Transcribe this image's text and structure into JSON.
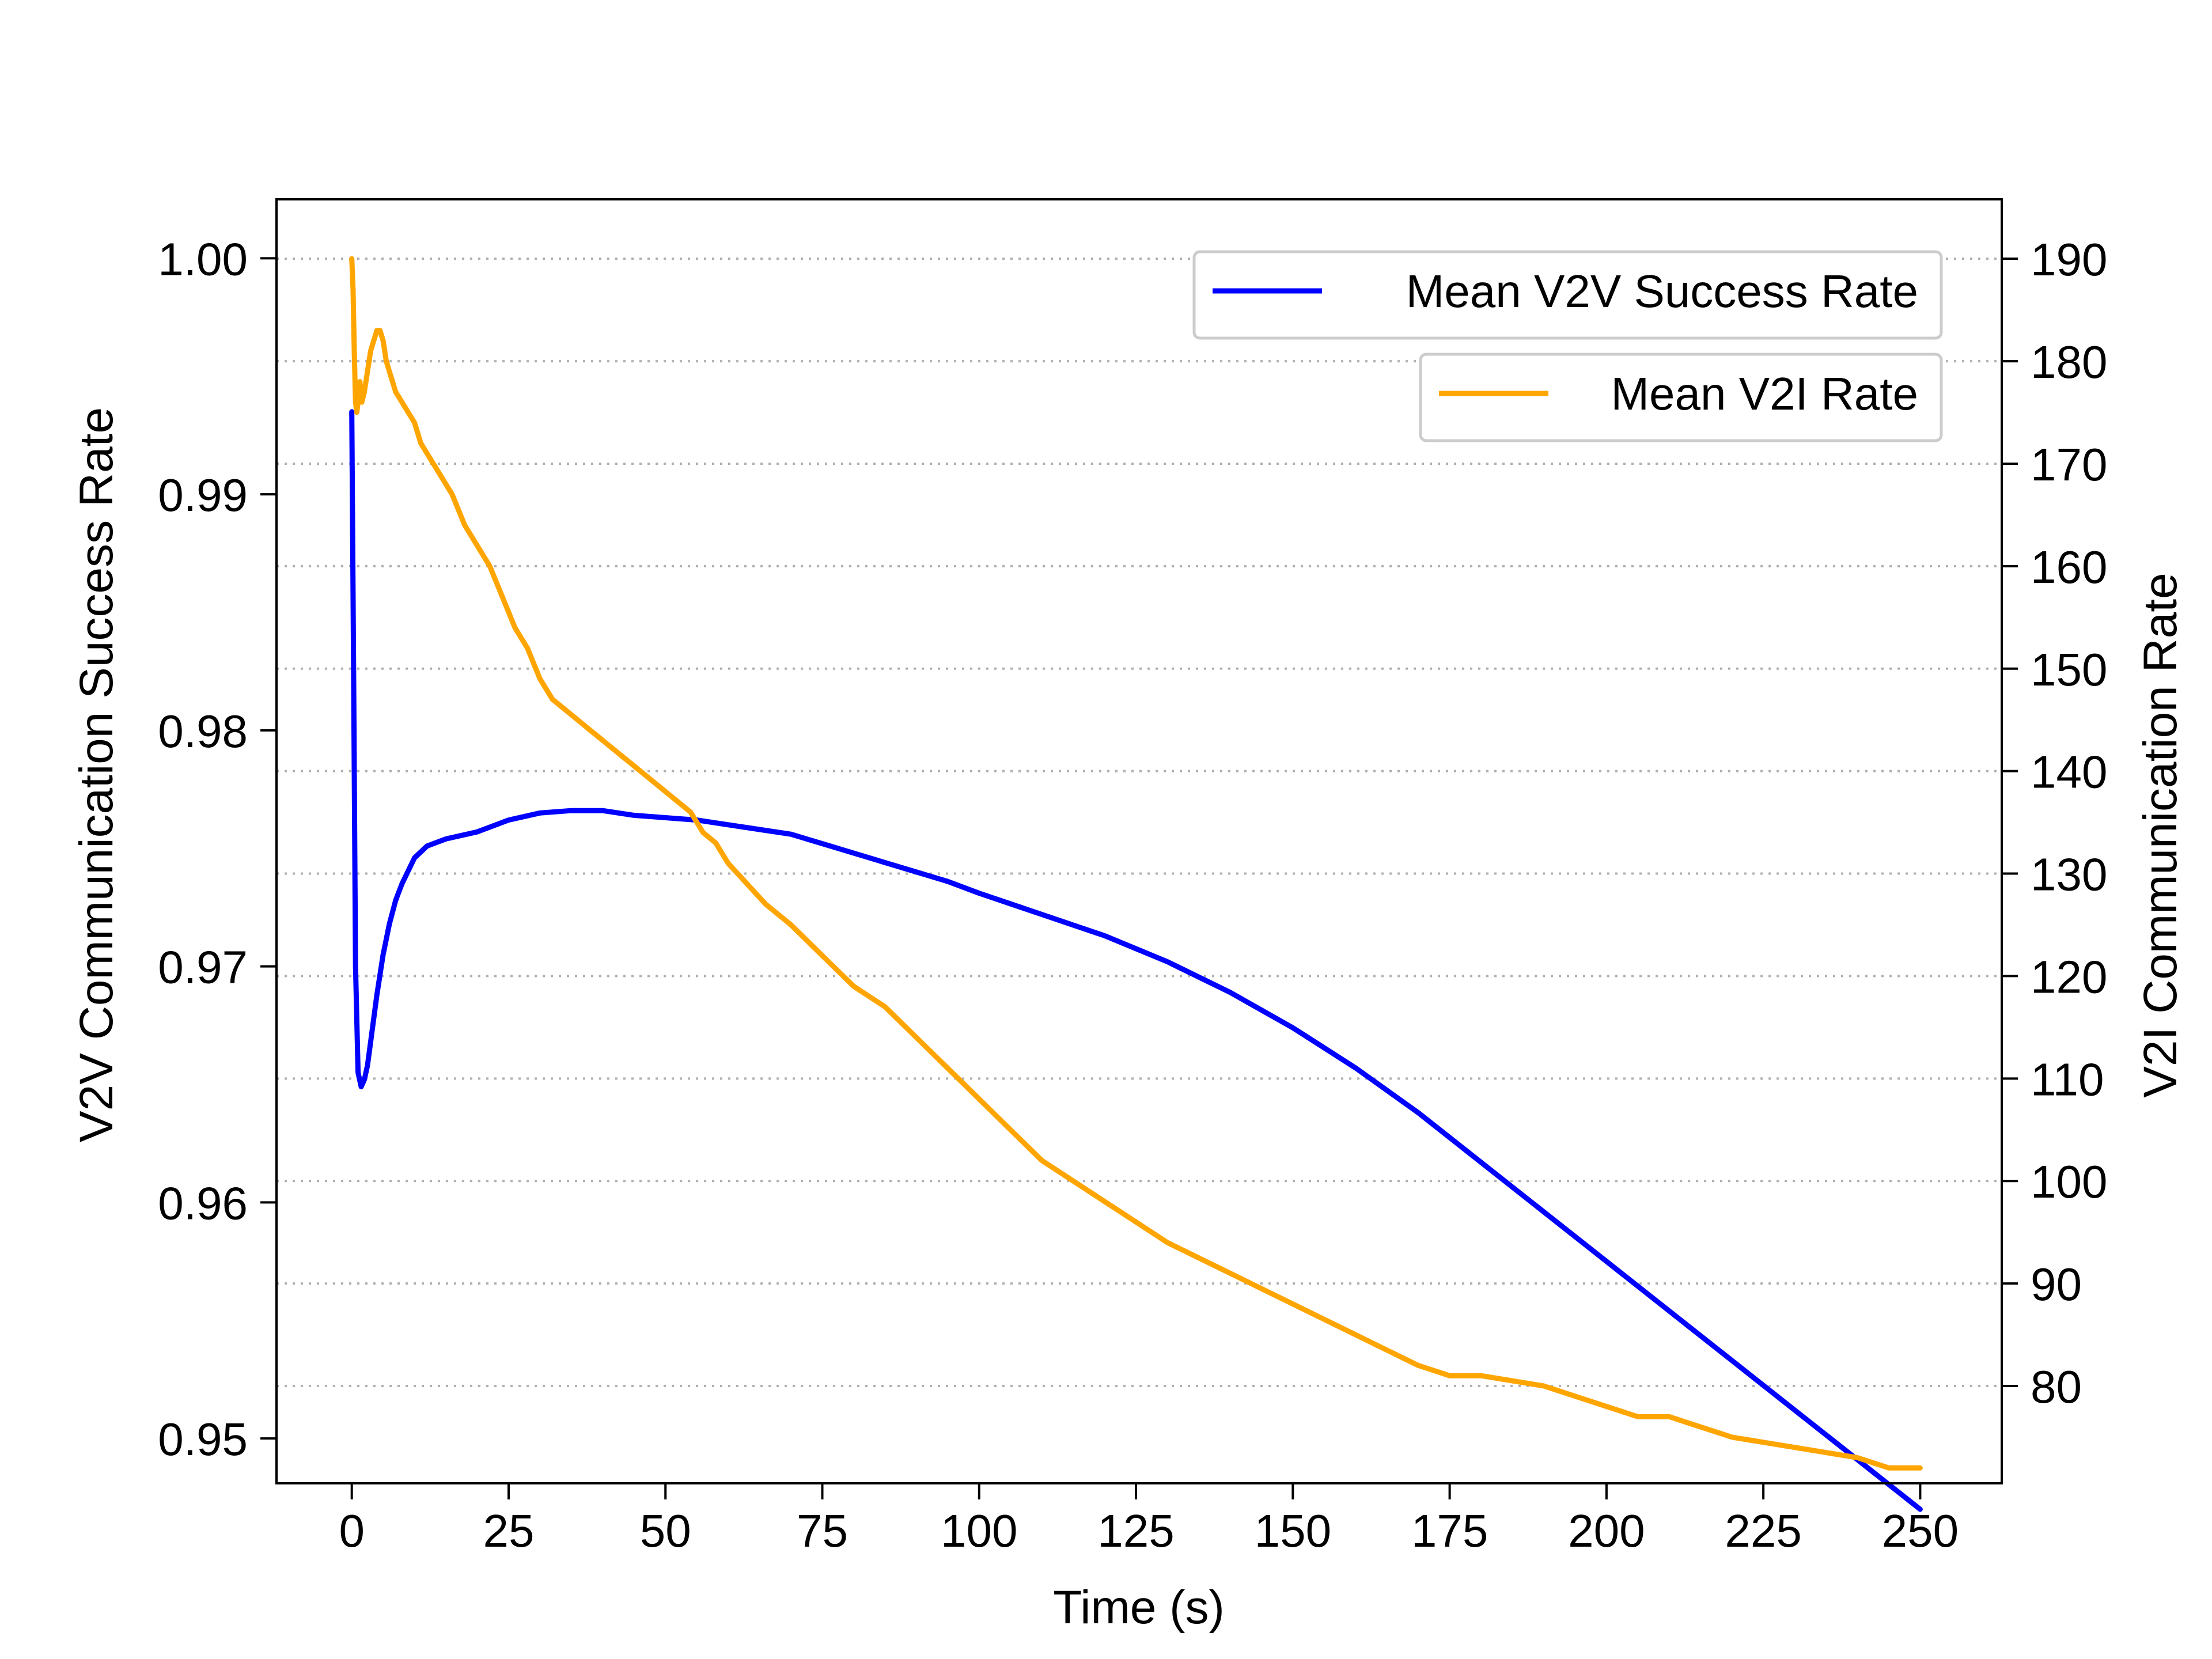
{
  "chart_data": {
    "type": "line",
    "title": "",
    "xlabel": "Time (s)",
    "ylabel_left": "V2V Communication Success Rate",
    "ylabel_right": "V2I Communication Rate",
    "xlim": [
      -12,
      263
    ],
    "ylim_left": [
      0.9481,
      1.0025
    ],
    "ylim_right": [
      70.5,
      195.8
    ],
    "x_ticks": [
      0,
      25,
      50,
      75,
      100,
      125,
      150,
      175,
      200,
      225,
      250
    ],
    "y_left_ticks": [
      0.95,
      0.96,
      0.97,
      0.98,
      0.99,
      1.0
    ],
    "y_left_tick_labels": [
      "0.95",
      "0.96",
      "0.97",
      "0.98",
      "0.99",
      "1.00"
    ],
    "y_right_ticks": [
      80,
      90,
      100,
      110,
      120,
      130,
      140,
      150,
      160,
      170,
      180,
      190
    ],
    "grid": "horizontal dotted at right-axis ticks",
    "colors": {
      "v2v": "#0000ff",
      "v2i": "#ffa500",
      "grid": "#b0b0b0",
      "legend_border": "#cccccc"
    },
    "series": [
      {
        "name": "Mean V2V Success Rate",
        "axis": "left",
        "color": "#0000ff",
        "x": [
          0,
          0.3,
          0.6,
          1,
          1.5,
          2,
          2.5,
          3,
          4,
          5,
          6,
          7,
          8,
          10,
          12,
          15,
          20,
          25,
          30,
          35,
          40,
          45,
          50,
          55,
          60,
          65,
          70,
          75,
          80,
          85,
          90,
          95,
          100,
          110,
          120,
          130,
          140,
          150,
          160,
          170,
          180,
          190,
          200,
          210,
          220,
          230,
          240,
          250
        ],
        "y": [
          0.9935,
          0.982,
          0.97,
          0.9655,
          0.9649,
          0.9652,
          0.9658,
          0.9668,
          0.9688,
          0.9705,
          0.9718,
          0.9728,
          0.9735,
          0.9746,
          0.9751,
          0.9754,
          0.9757,
          0.9762,
          0.9765,
          0.9766,
          0.9766,
          0.9764,
          0.9763,
          0.9762,
          0.976,
          0.9758,
          0.9756,
          0.9752,
          0.9748,
          0.9744,
          0.974,
          0.9736,
          0.9731,
          0.9722,
          0.9713,
          0.9702,
          0.9689,
          0.9674,
          0.9657,
          0.9638,
          0.9617,
          0.9596,
          0.9575,
          0.9554,
          0.9533,
          0.9512,
          0.9491,
          0.947
        ]
      },
      {
        "name": "Mean V2I Rate",
        "axis": "right",
        "color": "#ffa500",
        "x": [
          0,
          0.2,
          0.4,
          0.6,
          0.8,
          1,
          1.3,
          1.6,
          2,
          2.5,
          3,
          3.5,
          4,
          4.5,
          5,
          5.5,
          6,
          7,
          8,
          9,
          10,
          11,
          12,
          14,
          16,
          18,
          20,
          22,
          24,
          26,
          28,
          30,
          32,
          34,
          36,
          38,
          40,
          42,
          44,
          46,
          48,
          50,
          52,
          54,
          56,
          58,
          60,
          63,
          66,
          70,
          75,
          80,
          85,
          90,
          95,
          100,
          105,
          110,
          115,
          120,
          125,
          130,
          140,
          150,
          160,
          170,
          175,
          180,
          190,
          200,
          205,
          210,
          220,
          230,
          240,
          245,
          250
        ],
        "y": [
          190,
          187,
          181,
          176,
          175,
          176,
          178,
          176,
          177,
          179,
          181,
          182,
          183,
          183,
          182,
          180,
          179,
          177,
          176,
          175,
          174,
          172,
          171,
          169,
          167,
          164,
          162,
          160,
          157,
          154,
          152,
          149,
          147,
          146,
          145,
          144,
          143,
          142,
          141,
          140,
          139,
          138,
          137,
          136,
          134,
          133,
          131,
          129,
          127,
          125,
          122,
          119,
          117,
          114,
          111,
          108,
          105,
          102,
          100,
          98,
          96,
          94,
          91,
          88,
          85,
          82,
          81,
          81,
          80,
          78,
          77,
          77,
          75,
          74,
          73,
          72,
          72
        ]
      }
    ],
    "legend": [
      {
        "label": "Mean V2V Success Rate",
        "color": "#0000ff",
        "placement": "top-right"
      },
      {
        "label": "Mean V2I Rate",
        "color": "#ffa500",
        "placement": "top-right (below)"
      }
    ]
  }
}
